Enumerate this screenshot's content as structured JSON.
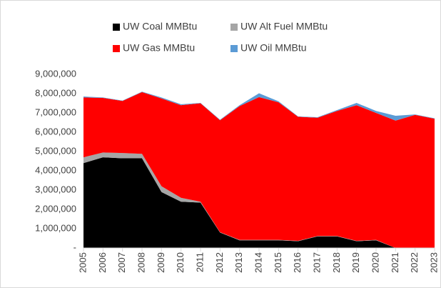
{
  "chart_data": {
    "type": "stacked_area",
    "categories": [
      "2005",
      "2006",
      "2007",
      "2008",
      "2009",
      "2010",
      "2011",
      "2012",
      "2013",
      "2014",
      "2015",
      "2016",
      "2017",
      "2018",
      "2019",
      "2020",
      "2021",
      "2022",
      "2023"
    ],
    "series": [
      {
        "name": "UW Coal MMBtu",
        "color": "#000000",
        "values": [
          4400000,
          4700000,
          4650000,
          4650000,
          2900000,
          2400000,
          2350000,
          800000,
          400000,
          400000,
          400000,
          350000,
          600000,
          600000,
          350000,
          400000,
          0,
          0,
          0
        ]
      },
      {
        "name": "UW Alt Fuel MMBtu",
        "color": "#a6a6a6",
        "values": [
          300000,
          250000,
          270000,
          230000,
          300000,
          200000,
          50000,
          20000,
          20000,
          20000,
          20000,
          20000,
          20000,
          20000,
          20000,
          20000,
          0,
          0,
          0
        ]
      },
      {
        "name": "UW Gas MMBtu",
        "color": "#ff0000",
        "values": [
          3100000,
          2830000,
          2700000,
          3200000,
          4550000,
          4800000,
          5100000,
          5800000,
          6930000,
          7400000,
          7130000,
          6430000,
          6130000,
          6480000,
          7030000,
          6580000,
          6600000,
          6900000,
          6700000
        ]
      },
      {
        "name": "UW Oil MMBtu",
        "color": "#5b9bd5",
        "values": [
          50000,
          20000,
          20000,
          20000,
          50000,
          50000,
          20000,
          30000,
          50000,
          200000,
          50000,
          20000,
          30000,
          50000,
          120000,
          100000,
          250000,
          20000,
          20000
        ]
      }
    ],
    "ylim": [
      0,
      9000000
    ],
    "yticks": [
      {
        "value": 0,
        "label": "-"
      },
      {
        "value": 1000000,
        "label": "1,000,000"
      },
      {
        "value": 2000000,
        "label": "2,000,000"
      },
      {
        "value": 3000000,
        "label": "3,000,000"
      },
      {
        "value": 4000000,
        "label": "4,000,000"
      },
      {
        "value": 5000000,
        "label": "5,000,000"
      },
      {
        "value": 6000000,
        "label": "6,000,000"
      },
      {
        "value": 7000000,
        "label": "7,000,000"
      },
      {
        "value": 8000000,
        "label": "8,000,000"
      },
      {
        "value": 9000000,
        "label": "9,000,000"
      }
    ],
    "grid": false
  }
}
